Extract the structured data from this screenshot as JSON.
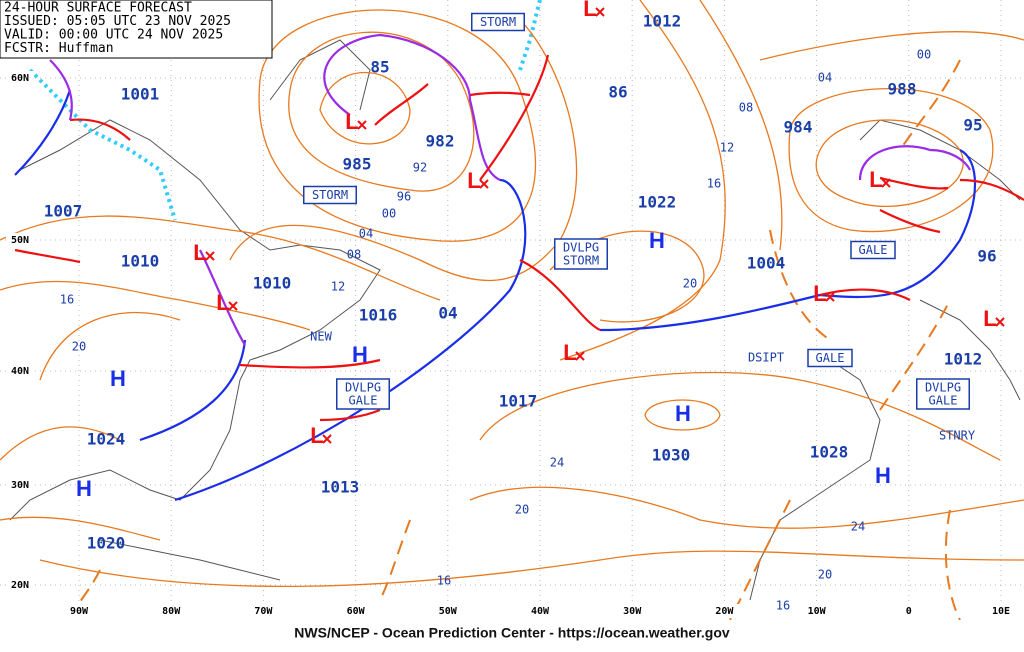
{
  "header": {
    "lines": [
      "24-HOUR SURFACE FORECAST",
      "ISSUED: 05:05 UTC 23 NOV 2025",
      "VALID:  00:00 UTC 24 NOV 2025",
      "FCSTR:  Huffman"
    ]
  },
  "pressure_labels": [
    "1001",
    "85",
    "982",
    "985",
    "1007",
    "1010",
    "1010",
    "1016",
    "04",
    "1012",
    "86",
    "1022",
    "1004",
    "984",
    "988",
    "95",
    "96",
    "1012",
    "1017",
    "1030",
    "1028",
    "1024",
    "1013",
    "1020"
  ],
  "isobar_labels": [
    "92",
    "96",
    "00",
    "04",
    "08",
    "12",
    "16",
    "20",
    "08",
    "12",
    "16",
    "20",
    "24",
    "20",
    "16",
    "04",
    "00",
    "24",
    "20",
    "16"
  ],
  "warning_boxes": [
    [
      "STORM"
    ],
    [
      "STORM"
    ],
    [
      "DVLPG",
      "STORM"
    ],
    [
      "GALE"
    ],
    [
      "GALE"
    ],
    [
      "DVLPG",
      "GALE"
    ],
    [
      "DVLPG",
      "GALE"
    ]
  ],
  "notes": [
    "NEW",
    "DSIPT",
    "STNRY"
  ],
  "highs": [
    "H",
    "H",
    "H",
    "H",
    "H",
    "H"
  ],
  "lows": [
    "L",
    "L",
    "L",
    "L",
    "L",
    "L",
    "L",
    "L",
    "L",
    "L"
  ],
  "lat_labels": [
    "60N",
    "50N",
    "40N",
    "30N",
    "20N"
  ],
  "lon_labels": [
    "90W",
    "80W",
    "70W",
    "60W",
    "50W",
    "40W",
    "30W",
    "20W",
    "10W",
    "0",
    "10E"
  ],
  "footer": "NWS/NCEP - Ocean Prediction Center - https://ocean.weather.gov"
}
